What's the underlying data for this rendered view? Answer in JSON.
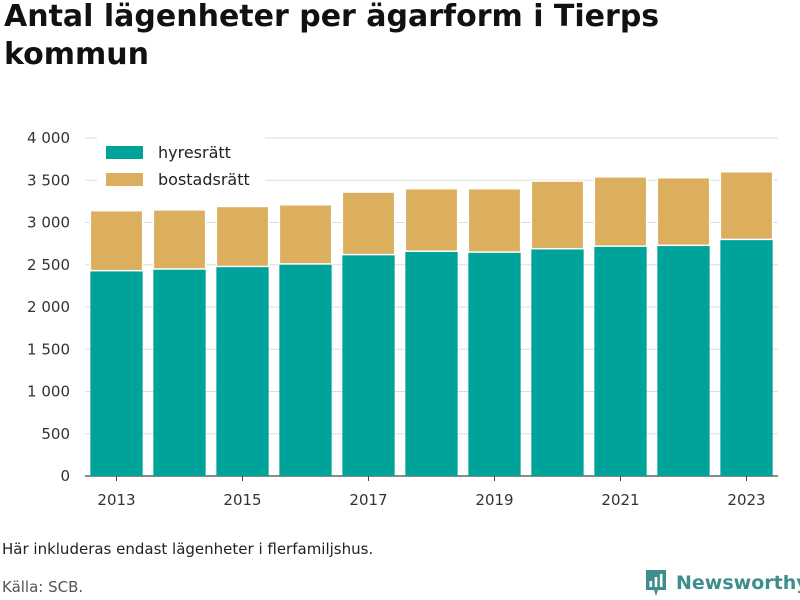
{
  "title": "Antal lägenheter per ägarform i Tierps kommun",
  "note": "Här inkluderas endast lägenheter i flerfamiljshus.",
  "source": "Källa: SCB.",
  "brand": "Newsworthy",
  "colors": {
    "hyresratt": "#00a39a",
    "bostadsratt": "#dbaf5e",
    "grid": "#dddddd",
    "brand": "#3d8e8c"
  },
  "chart_data": {
    "type": "bar",
    "stacked": true,
    "categories": [
      2013,
      2014,
      2015,
      2016,
      2017,
      2018,
      2019,
      2020,
      2021,
      2022,
      2023
    ],
    "x_tick_labels": [
      "2013",
      "2015",
      "2017",
      "2019",
      "2021",
      "2023"
    ],
    "y_tick_labels": [
      "0",
      "500",
      "1 000",
      "1 500",
      "2 000",
      "2 500",
      "3 000",
      "3 500",
      "4 000"
    ],
    "ylim": [
      0,
      4000
    ],
    "grid": true,
    "legend_position": "top-left",
    "series": [
      {
        "name": "hyresrätt",
        "color": "#00a39a",
        "values": [
          2430,
          2450,
          2480,
          2510,
          2620,
          2660,
          2650,
          2690,
          2720,
          2730,
          2800
        ]
      },
      {
        "name": "bostadsrätt",
        "color": "#dbaf5e",
        "values": [
          710,
          700,
          710,
          700,
          740,
          740,
          750,
          800,
          820,
          800,
          800
        ]
      }
    ]
  }
}
